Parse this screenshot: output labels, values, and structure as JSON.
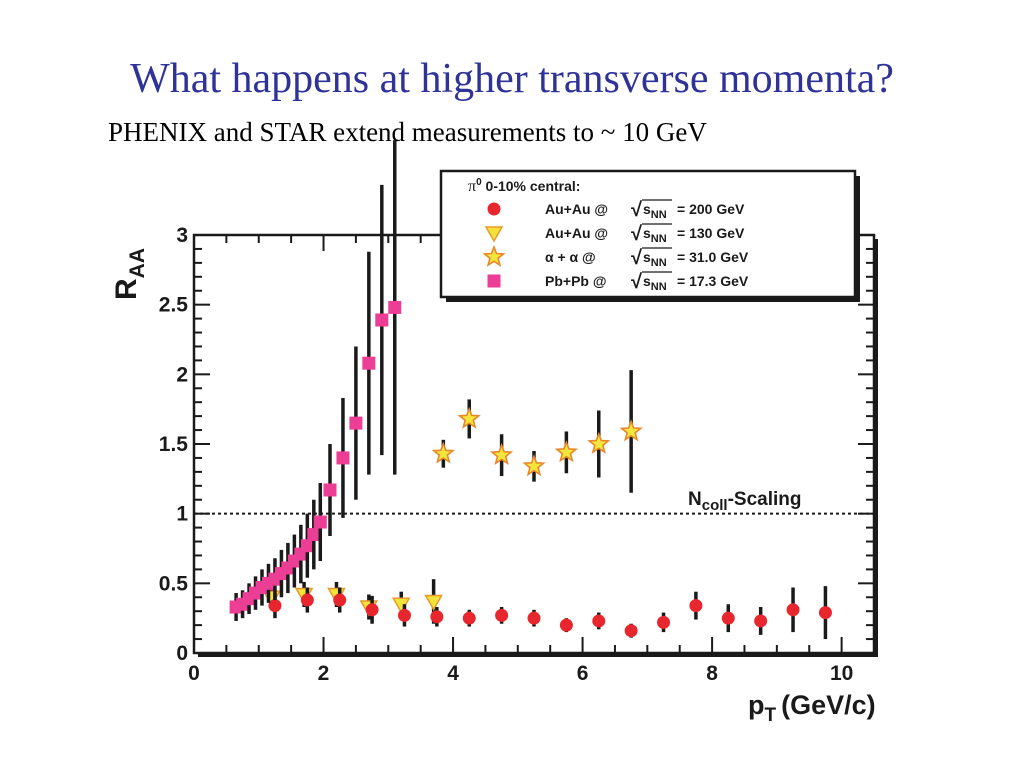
{
  "slide": {
    "title": "What happens at higher transverse momenta?",
    "subtitle": "PHENIX and STAR extend measurements to ~ 10 GeV"
  },
  "chart_data": {
    "type": "scatter",
    "xlabel": "p",
    "xlabel_sub": "T",
    "xlabel_unit": "(GeV/c)",
    "ylabel": "R",
    "ylabel_sub": "AA",
    "xlim": [
      0,
      10.5
    ],
    "ylim": [
      0,
      3
    ],
    "x_ticks": [
      0,
      2,
      4,
      6,
      8,
      10
    ],
    "y_ticks": [
      0,
      0.5,
      1,
      1.5,
      2,
      2.5,
      3
    ],
    "y_tick_labels": [
      "0",
      "0.5",
      "1",
      "1.5",
      "2",
      "2.5",
      "3"
    ],
    "reference_line": {
      "y": 1,
      "label": "N",
      "label_sub": "coll",
      "label_rest": "-Scaling"
    },
    "legend": {
      "placement": "top-right",
      "header": "π",
      "header_sup": "0",
      "header_rest": " 0-10% central:",
      "sqrt": "√",
      "entries": [
        {
          "system": "Au+Au @",
          "s": "s",
          "sub": "NN",
          "energy": "= 200 GeV"
        },
        {
          "system": "Au+Au @",
          "s": "s",
          "sub": "NN",
          "energy": "= 130 GeV"
        },
        {
          "system": "α + α  @",
          "s": "s",
          "sub": "NN",
          "energy": "= 31.0 GeV"
        },
        {
          "system": "Pb+Pb @",
          "s": "s",
          "sub": "NN",
          "energy": "= 17.3 GeV"
        }
      ]
    },
    "series": [
      {
        "marker": "circle",
        "color": "#e8262d",
        "points": [
          [
            1.25,
            0.34,
            0.09
          ],
          [
            1.75,
            0.38,
            0.09
          ],
          [
            2.25,
            0.38,
            0.09
          ],
          [
            2.75,
            0.31,
            0.1
          ],
          [
            3.25,
            0.27,
            0.08
          ],
          [
            3.75,
            0.26,
            0.07
          ],
          [
            4.25,
            0.25,
            0.06
          ],
          [
            4.75,
            0.27,
            0.06
          ],
          [
            5.25,
            0.25,
            0.06
          ],
          [
            5.75,
            0.2,
            0.05
          ],
          [
            6.25,
            0.23,
            0.06
          ],
          [
            6.75,
            0.16,
            0.05
          ],
          [
            7.25,
            0.22,
            0.07
          ],
          [
            7.75,
            0.34,
            0.1
          ],
          [
            8.25,
            0.25,
            0.1
          ],
          [
            8.75,
            0.23,
            0.1
          ],
          [
            9.25,
            0.31,
            0.16
          ],
          [
            9.75,
            0.29,
            0.19
          ]
        ]
      },
      {
        "marker": "triangle-down",
        "color": "#f2e33a",
        "points": [
          [
            1.2,
            0.4,
            0.06
          ],
          [
            1.7,
            0.42,
            0.09
          ],
          [
            2.2,
            0.42,
            0.09
          ],
          [
            2.7,
            0.33,
            0.09
          ],
          [
            3.2,
            0.35,
            0.09
          ],
          [
            3.7,
            0.37,
            0.16
          ]
        ]
      },
      {
        "marker": "star",
        "color": "#f5e63c",
        "points": [
          [
            3.85,
            1.43,
            0.1
          ],
          [
            4.25,
            1.68,
            0.14
          ],
          [
            4.75,
            1.42,
            0.15
          ],
          [
            5.25,
            1.34,
            0.11
          ],
          [
            5.75,
            1.44,
            0.15
          ],
          [
            6.25,
            1.5,
            0.24
          ],
          [
            6.75,
            1.59,
            0.44
          ]
        ]
      },
      {
        "marker": "square",
        "color": "#ec3e95",
        "points": [
          [
            0.65,
            0.33,
            0.1
          ],
          [
            0.75,
            0.35,
            0.1
          ],
          [
            0.85,
            0.39,
            0.11
          ],
          [
            0.95,
            0.43,
            0.12
          ],
          [
            1.05,
            0.47,
            0.13
          ],
          [
            1.15,
            0.5,
            0.14
          ],
          [
            1.25,
            0.53,
            0.15
          ],
          [
            1.35,
            0.57,
            0.17
          ],
          [
            1.45,
            0.61,
            0.18
          ],
          [
            1.55,
            0.66,
            0.19
          ],
          [
            1.65,
            0.71,
            0.21
          ],
          [
            1.75,
            0.77,
            0.23
          ],
          [
            1.85,
            0.85,
            0.25
          ],
          [
            1.95,
            0.94,
            0.28
          ],
          [
            2.1,
            1.17,
            0.33
          ],
          [
            2.3,
            1.4,
            0.43
          ],
          [
            2.5,
            1.65,
            0.55
          ],
          [
            2.7,
            2.08,
            0.8
          ],
          [
            2.9,
            2.39,
            0.97
          ],
          [
            3.1,
            2.48,
            1.2
          ]
        ]
      }
    ]
  }
}
